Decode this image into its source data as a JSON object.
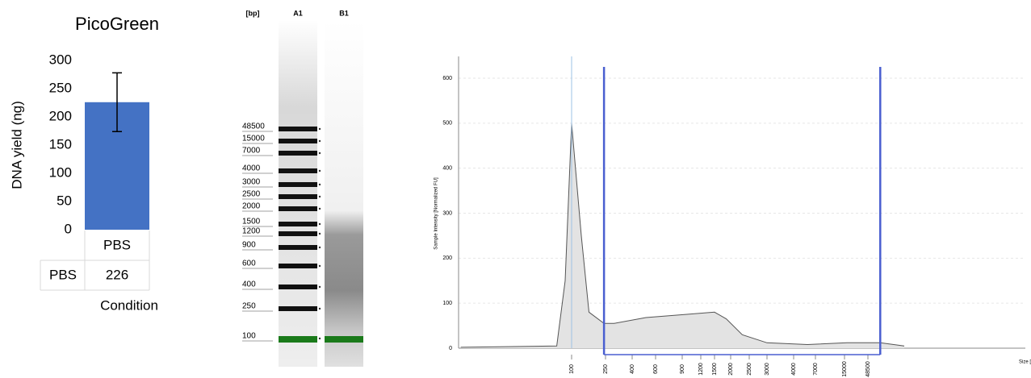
{
  "chart_data": [
    {
      "type": "bar",
      "title": "PicoGreen",
      "ylabel": "DNA yield (ng)",
      "xlabel": "Condition",
      "categories": [
        "PBS"
      ],
      "series": [
        {
          "name": "PBS",
          "color": "#4472c4",
          "values": [
            226
          ],
          "errors": [
            52
          ]
        }
      ],
      "ylim": [
        0,
        300
      ],
      "yticks": [
        0,
        50,
        100,
        150,
        200,
        250,
        300
      ]
    },
    {
      "type": "gel",
      "lanes": [
        "[bp]",
        "A1",
        "B1"
      ],
      "ladder": [
        48500,
        15000,
        7000,
        4000,
        3000,
        2500,
        2000,
        1500,
        1200,
        900,
        600,
        400,
        250,
        100
      ]
    },
    {
      "type": "line",
      "ylabel": "Sample Intensity [Normalized FU]",
      "xlabel": "Size [bp]",
      "x": [
        5,
        67,
        84,
        100,
        130,
        160,
        240,
        290,
        508,
        950,
        1500,
        1850,
        2300,
        3000,
        5700,
        17000,
        90000,
        300000
      ],
      "series": [
        {
          "color": "#555555",
          "values": [
            2,
            5,
            150,
            500,
            250,
            80,
            55,
            55,
            68,
            75,
            80,
            65,
            30,
            12,
            8,
            12,
            12,
            5
          ]
        }
      ],
      "xlim": [
        5,
        300000
      ],
      "ylim": [
        0,
        600
      ],
      "xticks": [
        100,
        250,
        400,
        600,
        900,
        1200,
        1500,
        2000,
        2500,
        3000,
        4000,
        7000,
        15000,
        48500
      ],
      "yticks": [
        0,
        100,
        200,
        300,
        400,
        500,
        600
      ],
      "lower_marker": 100,
      "region": [
        240,
        90000
      ],
      "grid": true
    }
  ]
}
